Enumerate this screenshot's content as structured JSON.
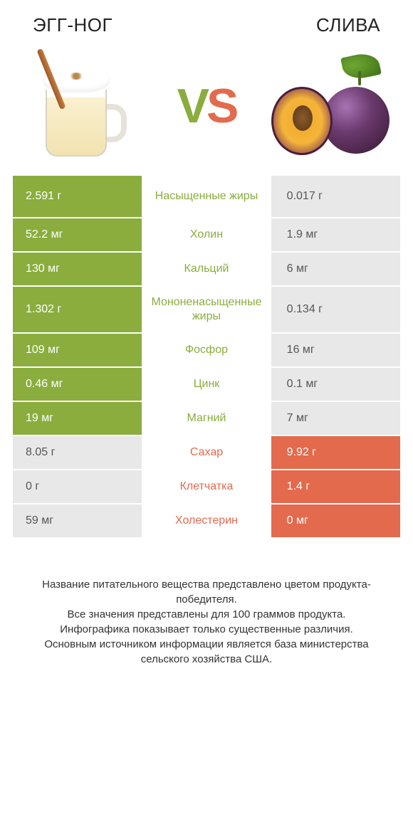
{
  "colors": {
    "green": "#8aad3e",
    "orange": "#e36a4d",
    "gray_bg": "#e8e8e8",
    "white": "#ffffff"
  },
  "header": {
    "left_title": "ЭГГ-НОГ",
    "right_title": "СЛИВА"
  },
  "vs": {
    "v": "V",
    "s": "S"
  },
  "rows": [
    {
      "left": "2.591 г",
      "label": "Насыщенные жиры",
      "right": "0.017 г",
      "winner": "left",
      "tall": true
    },
    {
      "left": "52.2 мг",
      "label": "Холин",
      "right": "1.9 мг",
      "winner": "left",
      "tall": false
    },
    {
      "left": "130 мг",
      "label": "Кальций",
      "right": "6 мг",
      "winner": "left",
      "tall": false
    },
    {
      "left": "1.302 г",
      "label": "Мононенасыщенные жиры",
      "right": "0.134 г",
      "winner": "left",
      "tall": true
    },
    {
      "left": "109 мг",
      "label": "Фосфор",
      "right": "16 мг",
      "winner": "left",
      "tall": false
    },
    {
      "left": "0.46 мг",
      "label": "Цинк",
      "right": "0.1 мг",
      "winner": "left",
      "tall": false
    },
    {
      "left": "19 мг",
      "label": "Магний",
      "right": "7 мг",
      "winner": "left",
      "tall": false
    },
    {
      "left": "8.05 г",
      "label": "Сахар",
      "right": "9.92 г",
      "winner": "right",
      "tall": false
    },
    {
      "left": "0 г",
      "label": "Клетчатка",
      "right": "1.4 г",
      "winner": "right",
      "tall": false
    },
    {
      "left": "59 мг",
      "label": "Холестерин",
      "right": "0 мг",
      "winner": "right",
      "tall": false
    }
  ],
  "footnote": "Название питательного вещества представлено цветом продукта-победителя.\nВсе значения представлены для 100 граммов продукта.\nИнфографика показывает только существенные различия.\nОсновным источником информации является база министерства сельского хозяйства США."
}
